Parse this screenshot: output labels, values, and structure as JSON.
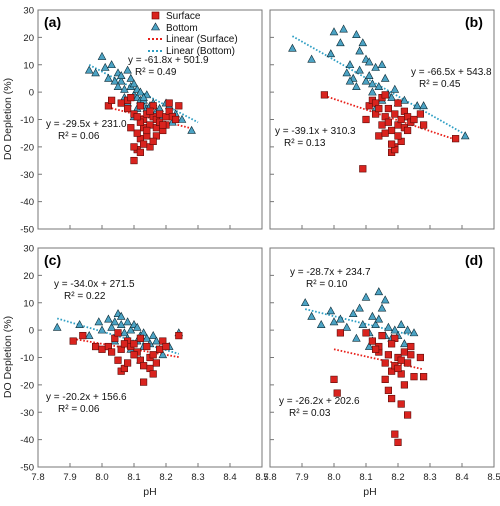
{
  "chart_data": [
    {
      "panel": "a",
      "type": "scatter",
      "xlim": [
        7.8,
        8.5
      ],
      "ylim": [
        -50,
        30
      ],
      "xlabel": "",
      "ylabel": "DO Depletion (%)",
      "series": [
        {
          "name": "Surface",
          "color": "#d9231e",
          "marker": "square",
          "x": [
            8.02,
            8.03,
            8.06,
            8.08,
            8.09,
            8.1,
            8.1,
            8.11,
            8.12,
            8.12,
            8.13,
            8.13,
            8.14,
            8.14,
            8.15,
            8.15,
            8.16,
            8.16,
            8.17,
            8.17,
            8.18,
            8.18,
            8.19,
            8.2,
            8.2,
            8.21,
            8.22,
            8.23,
            8.24,
            8.13,
            8.11,
            8.09,
            8.15,
            8.12,
            8.1,
            8.08,
            8.17,
            8.19,
            8.14,
            8.21,
            8.11,
            8.16,
            8.12
          ],
          "y": [
            -5,
            -3,
            -4,
            -3,
            -2,
            -8,
            -25,
            -21,
            -17,
            -5,
            -10,
            -13,
            -16,
            -8,
            -20,
            -12,
            -9,
            -5,
            -13,
            -10,
            -11,
            -8,
            -14,
            -9,
            -12,
            -7,
            -9,
            -10,
            -5,
            -19,
            -15,
            -13,
            -7,
            -11,
            -20,
            -6,
            -16,
            -12,
            -14,
            -4,
            -9,
            -18,
            -22
          ]
        },
        {
          "name": "Bottom",
          "color": "#4ca3c4",
          "marker": "triangle",
          "x": [
            7.96,
            7.98,
            8.0,
            8.01,
            8.02,
            8.03,
            8.04,
            8.05,
            8.06,
            8.06,
            8.07,
            8.08,
            8.08,
            8.09,
            8.09,
            8.1,
            8.1,
            8.11,
            8.11,
            8.12,
            8.12,
            8.13,
            8.13,
            8.14,
            8.14,
            8.15,
            8.15,
            8.16,
            8.17,
            8.18,
            8.19,
            8.2,
            8.21,
            8.22,
            8.23,
            8.25,
            8.28,
            8.05,
            8.07,
            8.11,
            8.13,
            8.1
          ],
          "y": [
            8,
            7,
            13,
            9,
            5,
            10,
            4,
            7,
            4,
            6,
            -2,
            8,
            -4,
            2,
            5,
            -1,
            3,
            -2,
            1,
            -3,
            0,
            -5,
            -3,
            -1,
            -6,
            -8,
            -5,
            -4,
            -7,
            -6,
            -9,
            -4,
            -5,
            -11,
            -8,
            -10,
            -14,
            2,
            1,
            -6,
            -2,
            -9
          ]
        }
      ],
      "fits": [
        {
          "name": "Linear (Surface)",
          "slope": -29.5,
          "intercept": 231.0,
          "x_range": [
            8.03,
            8.28
          ],
          "equation": "y = -29.5x + 231.0",
          "r2": "R² = 0.06"
        },
        {
          "name": "Linear (Bottom)",
          "slope": -61.8,
          "intercept": 501.9,
          "x_range": [
            7.96,
            8.3
          ],
          "equation": "y = -61.8x + 501.9",
          "r2": "R² = 0.49"
        }
      ]
    },
    {
      "panel": "b",
      "type": "scatter",
      "xlim": [
        7.8,
        8.5
      ],
      "ylim": [
        -50,
        30
      ],
      "xlabel": "",
      "ylabel": "",
      "series": [
        {
          "name": "Surface",
          "color": "#d9231e",
          "marker": "square",
          "x": [
            7.97,
            8.09,
            8.1,
            8.11,
            8.12,
            8.13,
            8.14,
            8.15,
            8.15,
            8.16,
            8.16,
            8.17,
            8.17,
            8.18,
            8.18,
            8.19,
            8.19,
            8.2,
            8.2,
            8.21,
            8.21,
            8.22,
            8.22,
            8.23,
            8.24,
            8.25,
            8.27,
            8.28,
            8.38,
            8.13,
            8.16,
            8.19,
            8.14,
            8.23,
            8.2,
            8.18
          ],
          "y": [
            -1,
            -28,
            -10,
            -5,
            -3,
            -8,
            -16,
            -12,
            -2,
            -9,
            -15,
            -6,
            -11,
            -14,
            -22,
            -8,
            -20,
            -4,
            -12,
            -10,
            -18,
            -7,
            -13,
            -9,
            -11,
            -10,
            -8,
            -12,
            -17,
            -4,
            -1,
            -21,
            -6,
            -14,
            -16,
            -19
          ]
        },
        {
          "name": "Bottom",
          "color": "#4ca3c4",
          "marker": "triangle",
          "x": [
            7.87,
            7.93,
            7.99,
            8.0,
            8.02,
            8.03,
            8.04,
            8.05,
            8.06,
            8.07,
            8.07,
            8.08,
            8.09,
            8.1,
            8.1,
            8.11,
            8.12,
            8.12,
            8.13,
            8.14,
            8.15,
            8.15,
            8.16,
            8.17,
            8.18,
            8.19,
            8.2,
            8.22,
            8.26,
            8.28,
            8.41,
            8.05,
            8.08,
            8.11,
            8.13
          ],
          "y": [
            16,
            12,
            14,
            22,
            18,
            23,
            7,
            10,
            5,
            21,
            2,
            15,
            18,
            12,
            4,
            6,
            3,
            0,
            9,
            2,
            -3,
            10,
            5,
            -1,
            -2,
            1,
            -4,
            -3,
            -5,
            -5,
            -16,
            4,
            8,
            11,
            -6
          ]
        }
      ],
      "fits": [
        {
          "name": "Linear (Surface)",
          "slope": -39.1,
          "intercept": 310.3,
          "x_range": [
            7.97,
            8.38
          ],
          "equation": "y = -39.1x + 310.3",
          "r2": "R² = 0.13"
        },
        {
          "name": "Linear (Bottom)",
          "slope": -66.5,
          "intercept": 543.8,
          "x_range": [
            7.87,
            8.41
          ],
          "equation": "y = -66.5x + 543.8",
          "r2": "R² = 0.45"
        }
      ]
    },
    {
      "panel": "c",
      "type": "scatter",
      "xlim": [
        7.8,
        8.5
      ],
      "ylim": [
        -50,
        30
      ],
      "xlabel": "pH",
      "ylabel": "DO Depletion (%)",
      "series": [
        {
          "name": "Surface",
          "color": "#d9231e",
          "marker": "square",
          "x": [
            7.91,
            7.94,
            7.98,
            8.0,
            8.02,
            8.03,
            8.04,
            8.05,
            8.06,
            8.06,
            8.07,
            8.08,
            8.08,
            8.09,
            8.1,
            8.11,
            8.12,
            8.12,
            8.13,
            8.14,
            8.15,
            8.15,
            8.16,
            8.17,
            8.18,
            8.19,
            8.2,
            8.24,
            8.05,
            8.1,
            8.13,
            8.16,
            8.07
          ],
          "y": [
            -4,
            -2,
            -6,
            -7,
            -6,
            -8,
            -3,
            -11,
            -7,
            -15,
            -14,
            -4,
            -12,
            -6,
            -5,
            -8,
            -3,
            -11,
            -19,
            -6,
            -10,
            -14,
            -9,
            -12,
            -7,
            -4,
            -6,
            -2,
            -1,
            -9,
            -13,
            -16,
            -5
          ]
        },
        {
          "name": "Bottom",
          "color": "#4ca3c4",
          "marker": "triangle",
          "x": [
            7.86,
            7.93,
            7.96,
            7.99,
            8.0,
            8.02,
            8.03,
            8.04,
            8.05,
            8.06,
            8.06,
            8.07,
            8.08,
            8.08,
            8.09,
            8.1,
            8.11,
            8.11,
            8.12,
            8.13,
            8.13,
            8.14,
            8.15,
            8.16,
            8.17,
            8.18,
            8.19,
            8.21,
            8.24,
            8.04,
            8.09,
            8.12
          ],
          "y": [
            1,
            2,
            -2,
            3,
            0,
            4,
            1,
            3,
            6,
            2,
            5,
            -1,
            3,
            -3,
            0,
            2,
            -4,
            1,
            -2,
            -6,
            -1,
            -3,
            -5,
            -2,
            -4,
            -7,
            -9,
            -6,
            -1,
            -4,
            -7,
            -11
          ]
        }
      ],
      "fits": [
        {
          "name": "Linear (Surface)",
          "slope": -20.2,
          "intercept": 156.6,
          "x_range": [
            7.91,
            8.24
          ],
          "equation": "y = -20.2x + 156.6",
          "r2": "R² = 0.06"
        },
        {
          "name": "Linear (Bottom)",
          "slope": -34.0,
          "intercept": 271.5,
          "x_range": [
            7.86,
            8.24
          ],
          "equation": "y = -34.0x + 271.5",
          "r2": "R² = 0.22"
        }
      ]
    },
    {
      "panel": "d",
      "type": "scatter",
      "xlim": [
        7.8,
        8.5
      ],
      "ylim": [
        -50,
        30
      ],
      "xlabel": "pH",
      "ylabel": "",
      "series": [
        {
          "name": "Surface",
          "color": "#d9231e",
          "marker": "square",
          "x": [
            8.0,
            8.01,
            8.1,
            8.12,
            8.14,
            8.15,
            8.16,
            8.17,
            8.17,
            8.18,
            8.18,
            8.19,
            8.19,
            8.2,
            8.2,
            8.21,
            8.21,
            8.22,
            8.22,
            8.23,
            8.23,
            8.24,
            8.25,
            8.27,
            8.28,
            8.02,
            8.14,
            8.19,
            8.21,
            8.16,
            8.24,
            8.2,
            8.13,
            8.18
          ],
          "y": [
            -18,
            -23,
            -1,
            -4,
            -8,
            -2,
            -12,
            -22,
            -9,
            -25,
            -15,
            -38,
            -13,
            -41,
            -10,
            -27,
            -16,
            -8,
            -20,
            -31,
            -12,
            -6,
            -17,
            -10,
            -17,
            -1,
            -6,
            -3,
            -11,
            -18,
            -9,
            -14,
            -7,
            -5
          ]
        },
        {
          "name": "Bottom",
          "color": "#4ca3c4",
          "marker": "triangle",
          "x": [
            7.91,
            7.93,
            7.96,
            7.99,
            8.0,
            8.02,
            8.04,
            8.06,
            8.07,
            8.08,
            8.09,
            8.1,
            8.11,
            8.12,
            8.12,
            8.13,
            8.14,
            8.15,
            8.16,
            8.17,
            8.18,
            8.19,
            8.2,
            8.21,
            8.22,
            8.23,
            8.25,
            8.14,
            8.16,
            8.11
          ],
          "y": [
            10,
            5,
            2,
            7,
            3,
            4,
            1,
            6,
            -3,
            8,
            2,
            12,
            -1,
            5,
            -4,
            2,
            14,
            8,
            -2,
            1,
            -3,
            0,
            -2,
            2,
            -5,
            0,
            -1,
            4,
            11,
            -6
          ]
        }
      ],
      "fits": [
        {
          "name": "Linear (Surface)",
          "slope": -26.2,
          "intercept": 202.6,
          "x_range": [
            8.0,
            8.28
          ],
          "equation": "y = -26.2x + 202.6",
          "r2": "R² = 0.03"
        },
        {
          "name": "Linear (Bottom)",
          "slope": -28.7,
          "intercept": 234.7,
          "x_range": [
            7.91,
            8.25
          ],
          "equation": "y = -28.7x + 234.7",
          "r2": "R² = 0.10"
        }
      ]
    }
  ],
  "panel_labels": [
    "(a)",
    "(b)",
    "(c)",
    "(d)"
  ],
  "axis": {
    "ylabel_a": "DO Depletion (%)",
    "ylabel_c": "DO Depletion (%)",
    "xlabel_c": "pH",
    "xlabel_d": "pH"
  },
  "legend": {
    "surface": "Surface",
    "bottom": "Bottom",
    "lin_surface": "Linear (Surface)",
    "lin_bottom": "Linear (Bottom)"
  },
  "colors": {
    "surface": "#d9231e",
    "bottom": "#4ca3c4",
    "fit_surface": "#e8201a",
    "fit_bottom": "#2f9fc4"
  }
}
